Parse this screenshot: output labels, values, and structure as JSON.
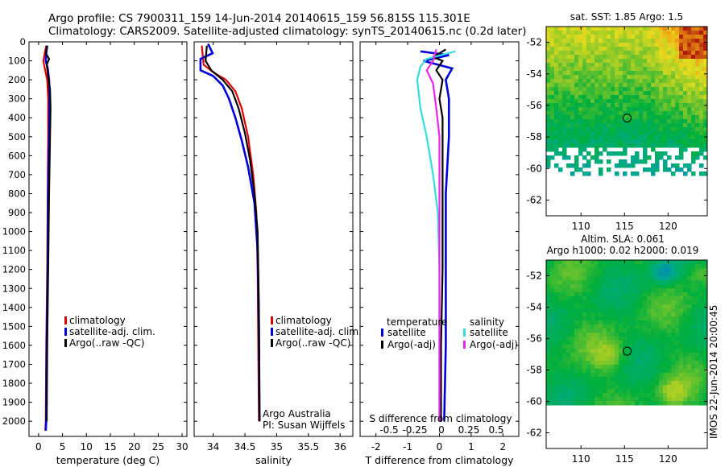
{
  "title_line1": "Argo profile: CS 7900311_159 14-Jun-2014 20140615_159 56.815S 115.301E",
  "title_line2": "Climatology: CARS2009. Satellite-adjusted climatology: synTS_20140615.nc (0.2d later)",
  "side_stamp": "IMOS 22-Jun-2014 20:00:45",
  "colors": {
    "climatology": "#e00000",
    "satellite": "#0000dd",
    "argo": "#000000",
    "sal_satellite": "#33dddd",
    "sal_argo": "#ee22ee"
  },
  "chart_data": [
    {
      "type": "line",
      "xlabel": "temperature (deg C)",
      "xlim": [
        -2,
        31
      ],
      "xticks": [
        0,
        5,
        10,
        15,
        20,
        25,
        30
      ],
      "ylim": [
        0,
        2080
      ],
      "yticks": [
        0,
        100,
        200,
        300,
        400,
        500,
        600,
        700,
        800,
        900,
        1000,
        1100,
        1200,
        1300,
        1400,
        1500,
        1600,
        1700,
        1800,
        1900,
        2000
      ],
      "legend": [
        "climatology",
        "satellite-adj. clim.",
        "Argo(..raw -QC)"
      ],
      "series": [
        {
          "name": "climatology",
          "color": "#e00000",
          "points": [
            [
              1.6,
              20
            ],
            [
              1.3,
              60
            ],
            [
              1.0,
              100
            ],
            [
              1.3,
              140
            ],
            [
              1.8,
              200
            ],
            [
              2.0,
              300
            ],
            [
              2.0,
              500
            ],
            [
              1.9,
              800
            ],
            [
              1.8,
              1200
            ],
            [
              1.6,
              1600
            ],
            [
              1.5,
              2000
            ],
            [
              1.4,
              2050
            ]
          ]
        },
        {
          "name": "satellite-adj. clim.",
          "color": "#0000dd",
          "points": [
            [
              1.8,
              20
            ],
            [
              1.6,
              60
            ],
            [
              1.5,
              100
            ],
            [
              1.9,
              140
            ],
            [
              2.2,
              200
            ],
            [
              2.3,
              300
            ],
            [
              2.2,
              500
            ],
            [
              2.0,
              800
            ],
            [
              1.9,
              1200
            ],
            [
              1.7,
              1600
            ],
            [
              1.6,
              2000
            ],
            [
              1.5,
              2050
            ]
          ]
        },
        {
          "name": "Argo(..raw -QC)",
          "color": "#000000",
          "points": [
            [
              1.8,
              20
            ],
            [
              1.5,
              60
            ],
            [
              2.2,
              90
            ],
            [
              1.7,
              120
            ],
            [
              2.0,
              180
            ],
            [
              2.4,
              250
            ],
            [
              2.5,
              350
            ],
            [
              2.4,
              500
            ],
            [
              2.2,
              800
            ],
            [
              2.0,
              1200
            ],
            [
              1.8,
              1600
            ],
            [
              1.7,
              2000
            ]
          ]
        }
      ]
    },
    {
      "type": "line",
      "xlabel": "salinity",
      "xlim": [
        33.7,
        36.2
      ],
      "xticks": [
        34,
        34.5,
        35,
        35.5,
        36
      ],
      "ylim": [
        0,
        2080
      ],
      "legend": [
        "climatology",
        "satellite-adj. clim.",
        "Argo(..raw -QC)"
      ],
      "annotations": [
        "Argo Australia",
        "PI: Susan Wijffels"
      ],
      "series": [
        {
          "name": "climatology",
          "color": "#e00000",
          "points": [
            [
              33.82,
              20
            ],
            [
              33.85,
              120
            ],
            [
              34.0,
              160
            ],
            [
              34.2,
              200
            ],
            [
              34.35,
              260
            ],
            [
              34.45,
              350
            ],
            [
              34.55,
              500
            ],
            [
              34.63,
              700
            ],
            [
              34.68,
              900
            ],
            [
              34.7,
              1200
            ],
            [
              34.71,
              1600
            ],
            [
              34.72,
              2000
            ]
          ]
        },
        {
          "name": "satellite-adj. clim.",
          "color": "#0000dd",
          "points": [
            [
              33.92,
              10
            ],
            [
              33.99,
              60
            ],
            [
              33.8,
              90
            ],
            [
              33.8,
              150
            ],
            [
              34.0,
              180
            ],
            [
              34.15,
              230
            ],
            [
              34.25,
              300
            ],
            [
              34.35,
              400
            ],
            [
              34.45,
              520
            ],
            [
              34.55,
              660
            ],
            [
              34.65,
              850
            ],
            [
              34.7,
              1100
            ],
            [
              34.72,
              1500
            ],
            [
              34.73,
              2000
            ]
          ]
        },
        {
          "name": "Argo(..raw -QC)",
          "color": "#000000",
          "points": [
            [
              33.9,
              20
            ],
            [
              33.88,
              100
            ],
            [
              33.97,
              150
            ],
            [
              34.15,
              200
            ],
            [
              34.3,
              260
            ],
            [
              34.4,
              350
            ],
            [
              34.5,
              480
            ],
            [
              34.58,
              620
            ],
            [
              34.65,
              800
            ],
            [
              34.7,
              1000
            ],
            [
              34.72,
              1400
            ],
            [
              34.73,
              2000
            ]
          ]
        }
      ]
    },
    {
      "type": "line",
      "xlabel": "T difference from climatology",
      "xlabel_top": "S difference from climatology",
      "xlim": [
        -2.5,
        2.5
      ],
      "xticks": [
        -2,
        -1,
        0,
        1,
        2
      ],
      "xticks_top": [
        "-0.5",
        "-0.25",
        "0",
        "0.25",
        "0.5"
      ],
      "ylim": [
        0,
        2080
      ],
      "legend_headers": [
        "temperature",
        "salinity"
      ],
      "legend": [
        "satellite",
        "Argo(-adj)",
        "satellite",
        "Argo(-adj)"
      ],
      "series": [
        {
          "name": "satellite",
          "color": "#0000dd",
          "points": [
            [
              -0.6,
              50
            ],
            [
              0.3,
              70
            ],
            [
              -0.5,
              100
            ],
            [
              0.4,
              140
            ],
            [
              0.2,
              200
            ],
            [
              0.3,
              300
            ],
            [
              0.3,
              500
            ],
            [
              0.2,
              800
            ],
            [
              0.2,
              1200
            ],
            [
              0.2,
              1600
            ],
            [
              0.15,
              2000
            ]
          ]
        },
        {
          "name": "Argo(-adj)",
          "color": "#000000",
          "points": [
            [
              0.2,
              40
            ],
            [
              -0.2,
              80
            ],
            [
              0.1,
              100
            ],
            [
              -0.1,
              150
            ],
            [
              0.1,
              200
            ],
            [
              0.0,
              300
            ],
            [
              0.1,
              400
            ],
            [
              0.1,
              500
            ],
            [
              0.1,
              800
            ],
            [
              0.1,
              1200
            ],
            [
              0.05,
              1600
            ],
            [
              0.05,
              2000
            ]
          ]
        },
        {
          "name": "satellite",
          "color": "#33dddd",
          "points": [
            [
              0.5,
              50
            ],
            [
              -0.4,
              90
            ],
            [
              -0.6,
              130
            ],
            [
              -0.7,
              200
            ],
            [
              -0.6,
              350
            ],
            [
              -0.4,
              500
            ],
            [
              -0.2,
              700
            ],
            [
              -0.05,
              900
            ],
            [
              0.0,
              1200
            ],
            [
              0.0,
              1600
            ],
            [
              0.0,
              2000
            ]
          ]
        },
        {
          "name": "Argo(-adj)",
          "color": "#ee22ee",
          "points": [
            [
              -0.1,
              40
            ],
            [
              -0.2,
              100
            ],
            [
              -0.4,
              150
            ],
            [
              -0.2,
              220
            ],
            [
              -0.1,
              350
            ],
            [
              0.0,
              500
            ],
            [
              0.0,
              800
            ],
            [
              0.0,
              1200
            ],
            [
              0.0,
              1600
            ],
            [
              0.0,
              2000
            ]
          ]
        }
      ]
    },
    {
      "type": "heatmap",
      "title": "sat. SST: 1.85 Argo: 1.5",
      "xticks": [
        110,
        115,
        120
      ],
      "yticks": [
        -52,
        -54,
        -56,
        -58,
        -60,
        -62
      ],
      "xlim": [
        106,
        124.5
      ],
      "ylim": [
        -63,
        -51
      ],
      "marker": [
        115.3,
        -56.8
      ]
    },
    {
      "type": "heatmap",
      "title": "Altim. SLA: 0.061",
      "subtitle": "Argo h1000: 0.02 h2000: 0.019",
      "xticks": [
        110,
        115,
        120
      ],
      "yticks": [
        -52,
        -54,
        -56,
        -58,
        -60,
        -62
      ],
      "xlim": [
        106,
        124.5
      ],
      "ylim": [
        -63,
        -51
      ],
      "marker": [
        115.3,
        -56.8
      ]
    }
  ]
}
